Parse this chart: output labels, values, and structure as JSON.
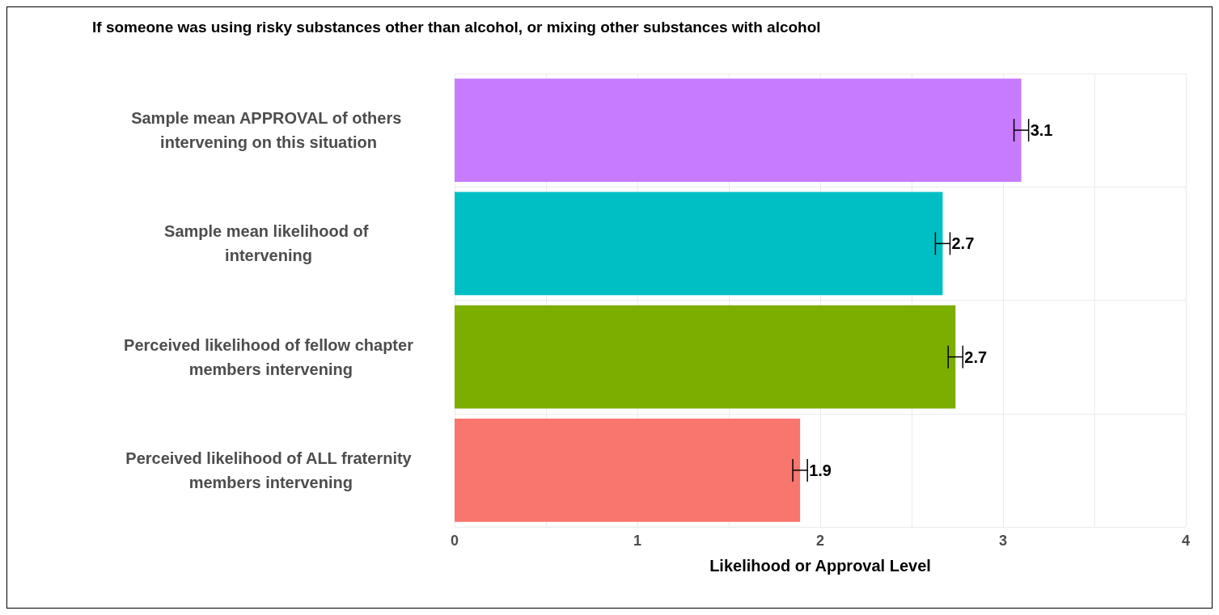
{
  "chart_data": {
    "type": "bar",
    "orientation": "horizontal",
    "title": "If someone was using risky substances other than alcohol, or mixing other substances with alcohol",
    "xlabel": "Likelihood or Approval Level",
    "categories": [
      "Sample mean APPROVAL of others intervening on this situation",
      "Sample mean likelihood of intervening",
      "Perceived likelihood of fellow chapter members intervening",
      "Perceived likelihood of ALL fraternity members intervening"
    ],
    "values": [
      3.1,
      2.67,
      2.74,
      1.89
    ],
    "colors": [
      "#c77cff",
      "#00bfc4",
      "#7cae00",
      "#f8766d"
    ],
    "errors": [
      0.04,
      0.04,
      0.04,
      0.04
    ],
    "value_labels": [
      "3.1",
      "2.7",
      "2.7",
      "1.9"
    ],
    "xlim": [
      0,
      4
    ],
    "xticks": [
      0,
      {
        "value": 0.5,
        "label": null
      },
      1,
      {
        "value": 1.5,
        "label": null
      },
      2,
      {
        "value": 2.5,
        "label": null
      },
      3,
      {
        "value": 3.5,
        "label": null
      },
      4
    ],
    "grid": true
  }
}
